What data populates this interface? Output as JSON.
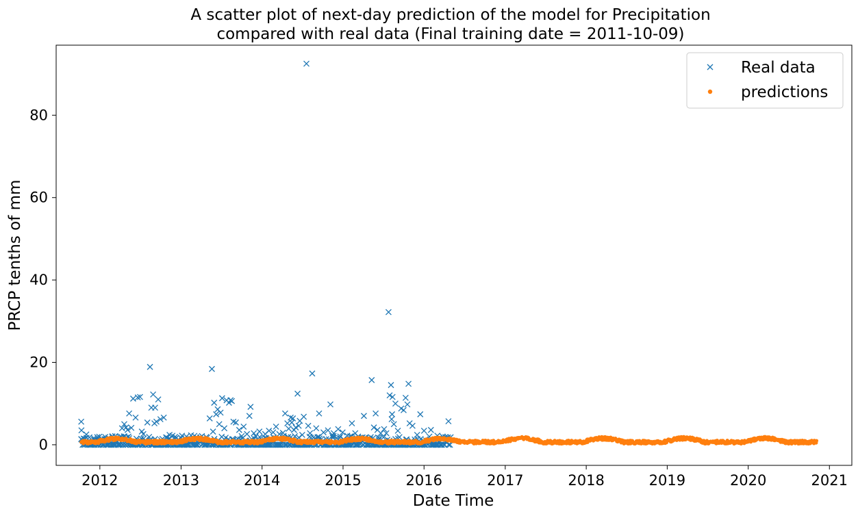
{
  "chart_data": {
    "type": "scatter",
    "title_line1": "A scatter plot of next-day prediction of the model for Precipitation",
    "title_line2": "compared with real data (Final training date = 2011-10-09)",
    "xlabel": "Date Time",
    "ylabel": "PRCP tenths of mm",
    "xlim": [
      "2011-06-18",
      "2021-04-12"
    ],
    "ylim": [
      -5,
      97
    ],
    "x_ticks": [
      "2012",
      "2013",
      "2014",
      "2015",
      "2016",
      "2017",
      "2018",
      "2019",
      "2020",
      "2021"
    ],
    "y_ticks": [
      "0",
      "20",
      "40",
      "60",
      "80"
    ],
    "grid": false,
    "legend_position": "top-right",
    "colors": {
      "real": "#1f77b4",
      "pred": "#ff7f0e"
    },
    "series": [
      {
        "name": "Real data",
        "marker": "x",
        "points": [
          [
            "2011-10-09",
            5.6
          ],
          [
            "2011-10-10",
            3.5
          ],
          [
            "2011-10-20",
            1.5
          ],
          [
            "2011-11-01",
            2.5
          ],
          [
            "2011-11-15",
            1.8
          ],
          [
            "2011-12-05",
            1.6
          ],
          [
            "2011-12-20",
            1.3
          ],
          [
            "2012-01-10",
            1.5
          ],
          [
            "2012-01-25",
            1.9
          ],
          [
            "2012-02-08",
            1.7
          ],
          [
            "2012-02-25",
            2.0
          ],
          [
            "2012-03-10",
            2.1
          ],
          [
            "2012-03-25",
            1.2
          ],
          [
            "2012-04-10",
            4.0
          ],
          [
            "2012-04-20",
            5.0
          ],
          [
            "2012-04-28",
            4.2
          ],
          [
            "2012-05-05",
            3.6
          ],
          [
            "2012-05-12",
            7.6
          ],
          [
            "2012-05-22",
            4.1
          ],
          [
            "2012-05-30",
            11.2
          ],
          [
            "2012-06-10",
            6.6
          ],
          [
            "2012-06-20",
            11.5
          ],
          [
            "2012-06-30",
            11.6
          ],
          [
            "2012-07-08",
            3.2
          ],
          [
            "2012-07-15",
            2.6
          ],
          [
            "2012-08-02",
            5.4
          ],
          [
            "2012-08-14",
            18.9
          ],
          [
            "2012-08-20",
            9.0
          ],
          [
            "2012-08-28",
            12.2
          ],
          [
            "2012-09-03",
            5.2
          ],
          [
            "2012-09-06",
            9.0
          ],
          [
            "2012-09-12",
            5.6
          ],
          [
            "2012-09-20",
            11.0
          ],
          [
            "2012-09-30",
            6.2
          ],
          [
            "2012-10-15",
            6.6
          ],
          [
            "2012-10-25",
            1.8
          ],
          [
            "2012-11-10",
            2.4
          ],
          [
            "2012-12-05",
            1.9
          ],
          [
            "2013-01-05",
            2.2
          ],
          [
            "2013-01-25",
            2.0
          ],
          [
            "2013-02-15",
            2.3
          ],
          [
            "2013-03-10",
            1.8
          ],
          [
            "2013-04-05",
            2.1
          ],
          [
            "2013-04-25",
            1.9
          ],
          [
            "2013-05-10",
            6.4
          ],
          [
            "2013-05-20",
            18.4
          ],
          [
            "2013-05-25",
            3.2
          ],
          [
            "2013-05-30",
            10.2
          ],
          [
            "2013-06-08",
            7.4
          ],
          [
            "2013-06-15",
            8.6
          ],
          [
            "2013-06-22",
            5.0
          ],
          [
            "2013-06-28",
            7.8
          ],
          [
            "2013-07-05",
            11.3
          ],
          [
            "2013-07-15",
            4.0
          ],
          [
            "2013-07-25",
            10.8
          ],
          [
            "2013-08-05",
            10.2
          ],
          [
            "2013-08-12",
            10.8
          ],
          [
            "2013-08-18",
            10.6
          ],
          [
            "2013-08-25",
            5.6
          ],
          [
            "2013-09-05",
            5.4
          ],
          [
            "2013-09-20",
            3.6
          ],
          [
            "2013-10-10",
            4.4
          ],
          [
            "2013-10-25",
            2.6
          ],
          [
            "2013-11-05",
            7.0
          ],
          [
            "2013-11-10",
            9.2
          ],
          [
            "2013-11-25",
            2.8
          ],
          [
            "2013-12-20",
            3.2
          ],
          [
            "2014-01-15",
            2.6
          ],
          [
            "2014-02-01",
            3.4
          ],
          [
            "2014-02-20",
            3.0
          ],
          [
            "2014-03-05",
            4.4
          ],
          [
            "2014-03-20",
            2.6
          ],
          [
            "2014-04-05",
            2.9
          ],
          [
            "2014-04-15",
            7.6
          ],
          [
            "2014-04-25",
            5.2
          ],
          [
            "2014-05-01",
            3.9
          ],
          [
            "2014-05-10",
            6.6
          ],
          [
            "2014-05-15",
            5.4
          ],
          [
            "2014-05-20",
            6.4
          ],
          [
            "2014-05-25",
            3.6
          ],
          [
            "2014-06-02",
            4.2
          ],
          [
            "2014-06-10",
            12.4
          ],
          [
            "2014-06-15",
            4.6
          ],
          [
            "2014-06-20",
            5.8
          ],
          [
            "2014-07-01",
            2.4
          ],
          [
            "2014-07-08",
            6.8
          ],
          [
            "2014-07-20",
            92.5
          ],
          [
            "2014-07-28",
            4.6
          ],
          [
            "2014-08-05",
            2.8
          ],
          [
            "2014-08-15",
            17.3
          ],
          [
            "2014-09-02",
            4.0
          ],
          [
            "2014-09-15",
            7.6
          ],
          [
            "2014-10-05",
            3.0
          ],
          [
            "2014-10-25",
            3.5
          ],
          [
            "2014-11-05",
            9.8
          ],
          [
            "2014-11-20",
            2.8
          ],
          [
            "2014-12-10",
            3.8
          ],
          [
            "2014-12-30",
            3.0
          ],
          [
            "2015-01-20",
            2.2
          ],
          [
            "2015-02-10",
            5.2
          ],
          [
            "2015-02-25",
            2.8
          ],
          [
            "2015-03-10",
            2.0
          ],
          [
            "2015-03-30",
            1.8
          ],
          [
            "2015-04-05",
            7.0
          ],
          [
            "2015-04-25",
            1.4
          ],
          [
            "2015-05-10",
            15.7
          ],
          [
            "2015-05-20",
            4.2
          ],
          [
            "2015-05-28",
            7.6
          ],
          [
            "2015-06-05",
            3.6
          ],
          [
            "2015-06-20",
            2.8
          ],
          [
            "2015-07-05",
            3.8
          ],
          [
            "2015-07-15",
            2.8
          ],
          [
            "2015-07-25",
            32.2
          ],
          [
            "2015-07-30",
            12.0
          ],
          [
            "2015-08-05",
            14.5
          ],
          [
            "2015-08-08",
            6.2
          ],
          [
            "2015-08-10",
            7.4
          ],
          [
            "2015-08-12",
            11.6
          ],
          [
            "2015-08-18",
            5.0
          ],
          [
            "2015-08-25",
            10.0
          ],
          [
            "2015-09-05",
            3.4
          ],
          [
            "2015-09-20",
            8.8
          ],
          [
            "2015-10-01",
            8.4
          ],
          [
            "2015-10-10",
            11.4
          ],
          [
            "2015-10-18",
            9.8
          ],
          [
            "2015-10-23",
            14.8
          ],
          [
            "2015-10-28",
            5.2
          ],
          [
            "2015-11-10",
            4.6
          ],
          [
            "2015-12-01",
            2.4
          ],
          [
            "2015-12-15",
            7.4
          ],
          [
            "2016-01-01",
            3.4
          ],
          [
            "2016-02-01",
            3.6
          ],
          [
            "2016-03-01",
            2.2
          ],
          [
            "2016-03-25",
            2.0
          ],
          [
            "2016-04-20",
            5.7
          ]
        ]
      },
      {
        "name": "predictions",
        "marker": "o"
      }
    ]
  }
}
